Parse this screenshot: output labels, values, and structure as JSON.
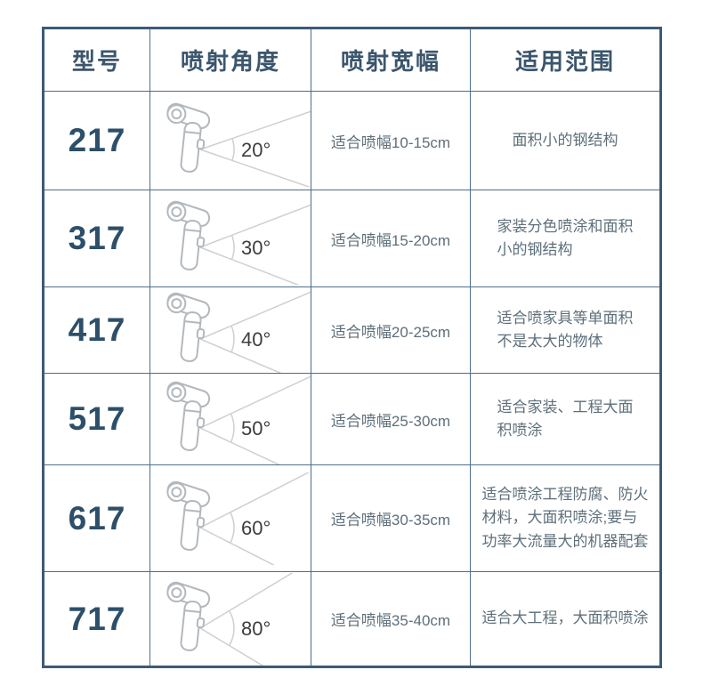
{
  "page": {
    "background": "#ffffff"
  },
  "table": {
    "headers": [
      "型号",
      "喷射角度",
      "喷射宽幅",
      "适用范围"
    ],
    "rows": [
      {
        "model": "217",
        "angle_deg": 20,
        "angle_label": "20°",
        "width_text": "适合喷幅10-15cm",
        "range_text": "面积小的钢结构"
      },
      {
        "model": "317",
        "angle_deg": 30,
        "angle_label": "30°",
        "width_text": "适合喷幅15-20cm",
        "range_text": "家装分色喷涂和面积\n小的钢结构"
      },
      {
        "model": "417",
        "angle_deg": 40,
        "angle_label": "40°",
        "width_text": "适合喷幅20-25cm",
        "range_text": "适合喷家具等单面积\n不是太大的物体"
      },
      {
        "model": "517",
        "angle_deg": 50,
        "angle_label": "50°",
        "width_text": "适合喷幅25-30cm",
        "range_text": "适合家装、工程大面\n积喷涂"
      },
      {
        "model": "617",
        "angle_deg": 60,
        "angle_label": "60°",
        "width_text": "适合喷幅30-35cm",
        "range_text": "适合喷涂工程防腐、防火\n材料，大面积喷涂;要与\n功率大流量大的机器配套"
      },
      {
        "model": "717",
        "angle_deg": 80,
        "angle_label": "80°",
        "width_text": "适合喷幅35-40cm",
        "range_text": "适合大工程，大面积喷涂"
      }
    ]
  },
  "colors": {
    "outer_border": "#3c5a74",
    "grid_line": "#4f6e89",
    "header_text": "#3b566d",
    "model_text": "#2d4f69",
    "body_text": "#5e6f7a",
    "spray_line": "#cdd0d3",
    "nozzle_line": "#b3b8bd",
    "angle_text": "#3d3d3d"
  }
}
